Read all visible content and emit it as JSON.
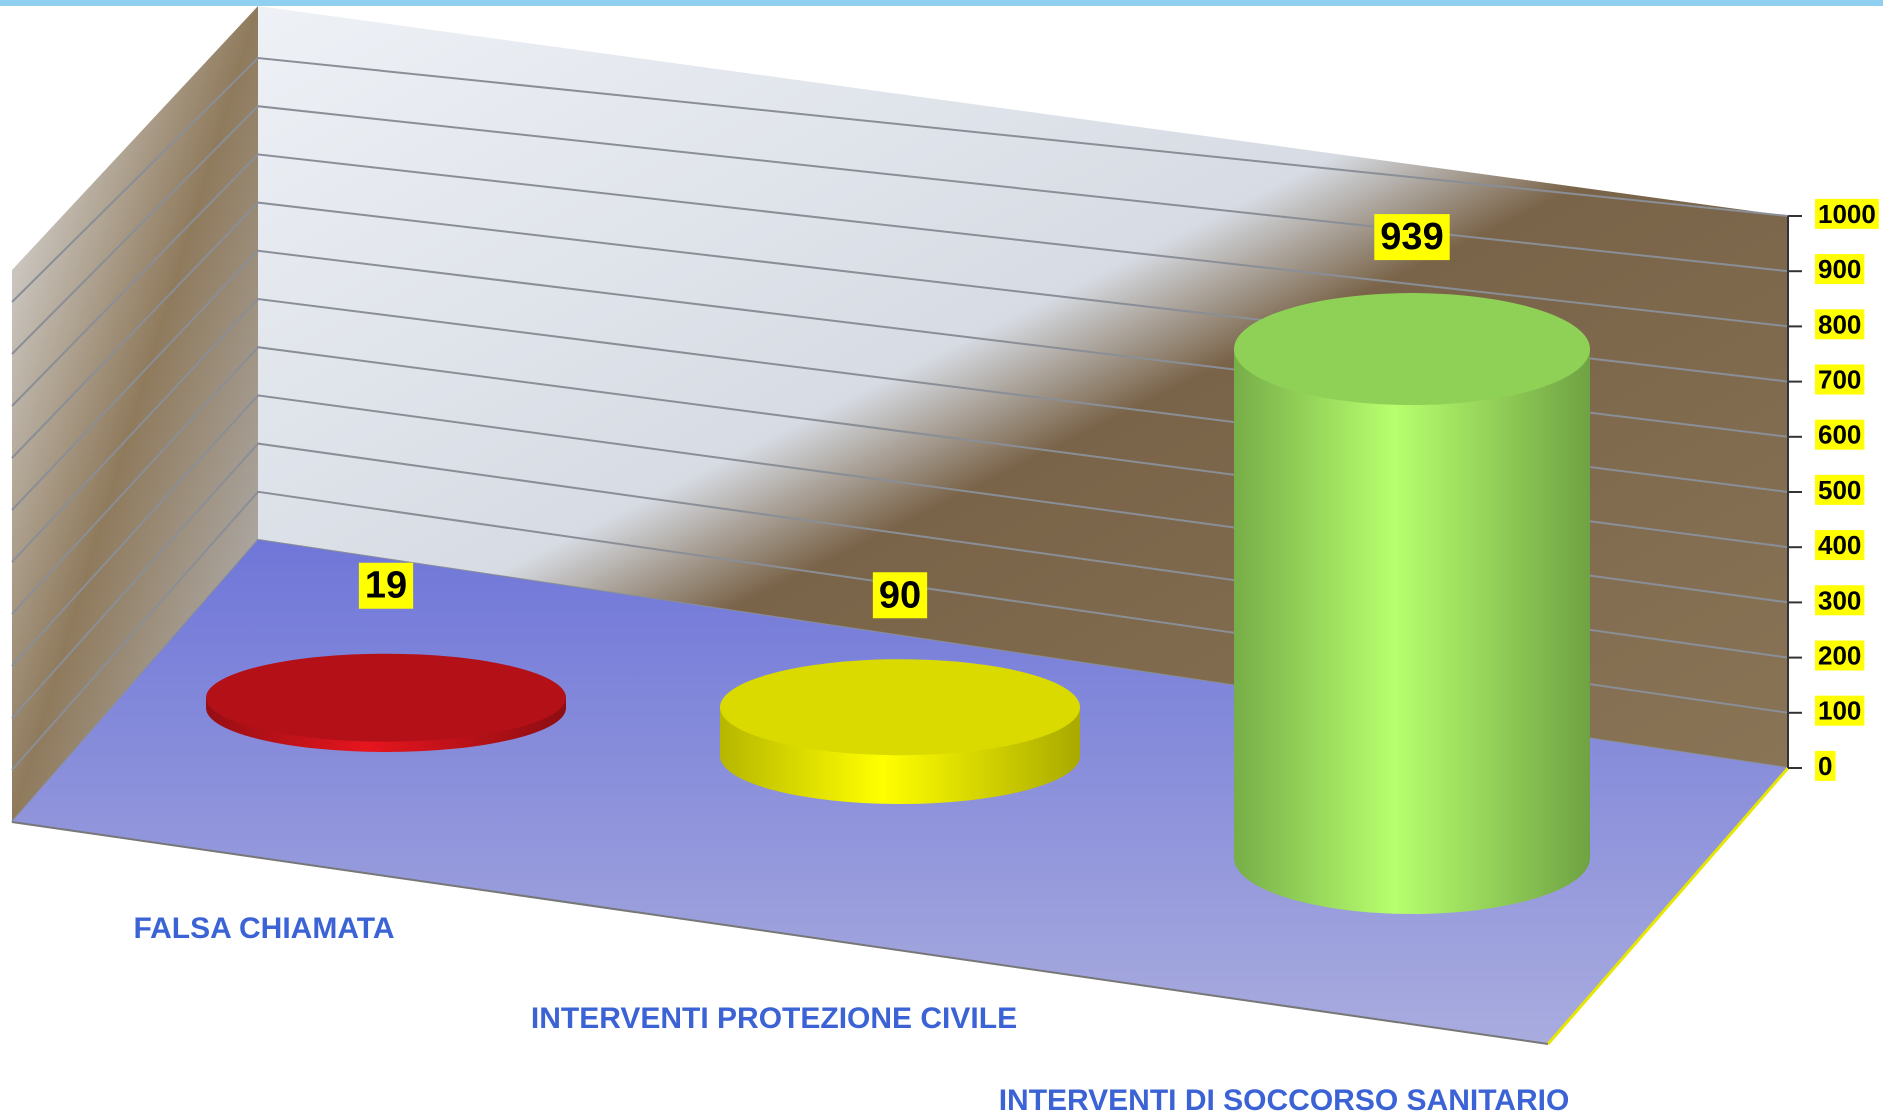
{
  "chart_data": {
    "type": "bar",
    "categories": [
      "FALSA CHIAMATA",
      "INTERVENTI PROTEZIONE CIVILE",
      "INTERVENTI DI SOCCORSO SANITARIO"
    ],
    "values": [
      19,
      90,
      939
    ],
    "colors": [
      "#c8121a",
      "#f2f200",
      "#9fe860"
    ],
    "ylim": [
      0,
      1000
    ],
    "yticks": [
      0,
      100,
      200,
      300,
      400,
      500,
      600,
      700,
      800,
      900,
      1000
    ],
    "grid": true
  }
}
